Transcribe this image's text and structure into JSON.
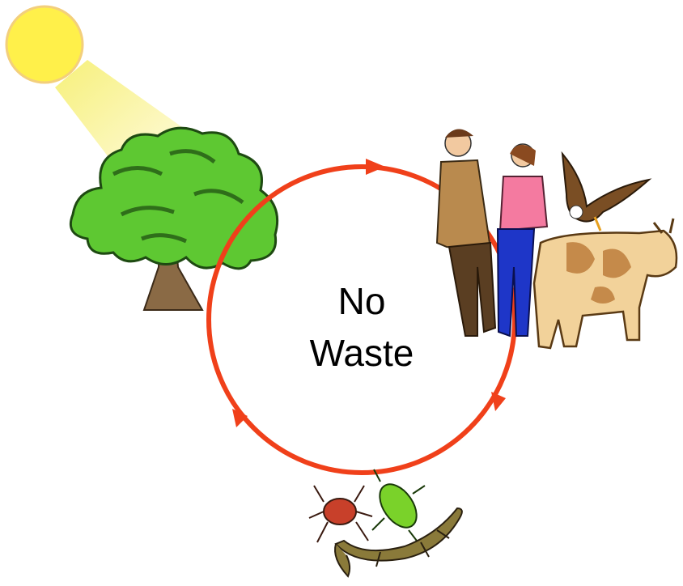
{
  "center_label": {
    "lines": [
      "No",
      "Waste"
    ]
  }
}
